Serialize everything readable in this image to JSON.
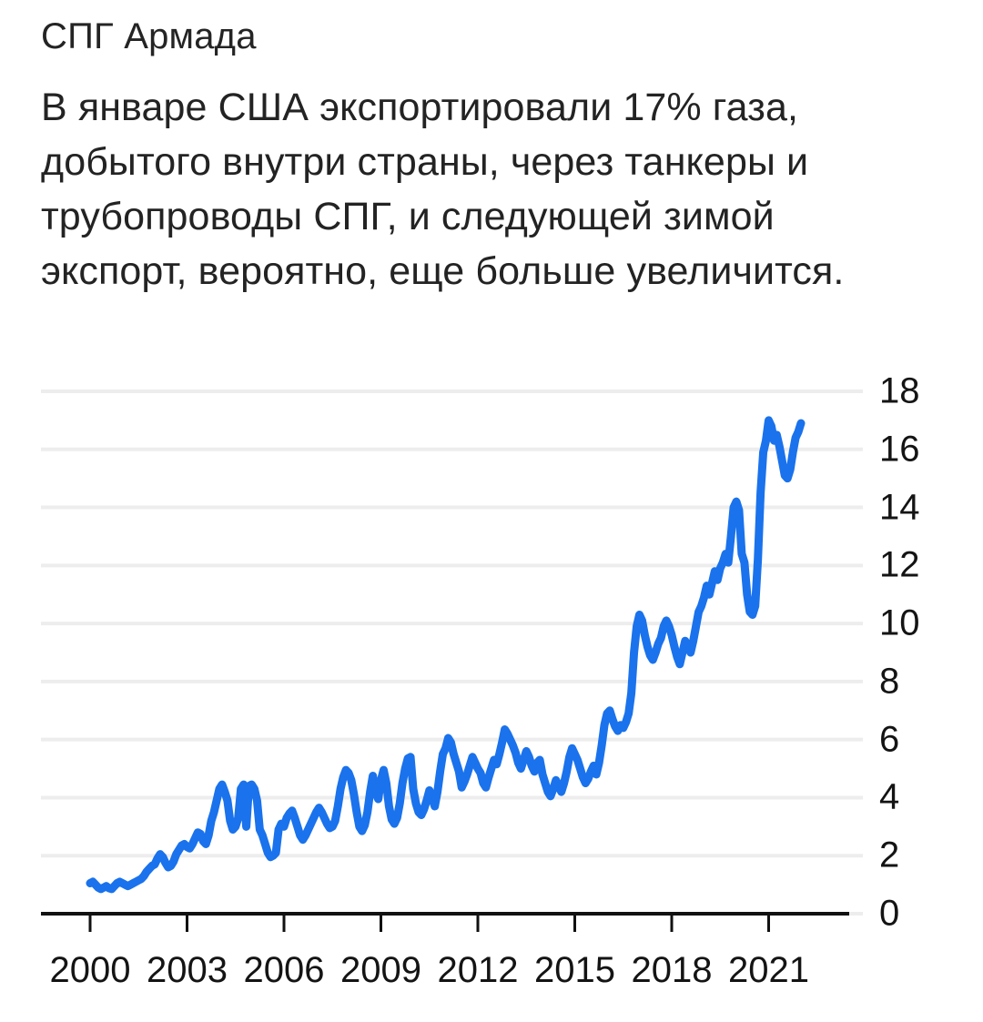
{
  "header": {
    "title": "СПГ Армада",
    "subtitle_lines": [
      "В январе США экспортировали 17% газа,",
      "добытого внутри страны, через танкеры и",
      "трубопроводы СПГ, и следующей зимой",
      "экспорт, вероятно, еще больше увеличится."
    ]
  },
  "chart_data": {
    "type": "line",
    "title": "СПГ Армада",
    "xlabel": "",
    "ylabel": "",
    "x_start_year": 2000,
    "points_per_year": 12,
    "x_end_label": "2022-01",
    "x_ticks": [
      2000,
      2003,
      2006,
      2009,
      2012,
      2015,
      2018,
      2021
    ],
    "y_ticks": [
      0,
      2,
      4,
      6,
      8,
      10,
      12,
      14,
      16,
      18
    ],
    "ylim": [
      0,
      18
    ],
    "grid": true,
    "legend": "none",
    "line_color": "#1a72ec",
    "grid_color": "#ededed",
    "axis_color": "#111111",
    "values": [
      1.05,
      1.1,
      1.0,
      0.9,
      0.85,
      0.9,
      0.95,
      0.88,
      0.85,
      0.95,
      1.05,
      1.1,
      1.05,
      1.0,
      0.95,
      1.0,
      1.05,
      1.1,
      1.15,
      1.2,
      1.3,
      1.45,
      1.55,
      1.65,
      1.7,
      1.9,
      2.05,
      1.95,
      1.75,
      1.6,
      1.65,
      1.8,
      2.05,
      2.2,
      2.35,
      2.4,
      2.3,
      2.25,
      2.4,
      2.6,
      2.8,
      2.75,
      2.5,
      2.4,
      2.7,
      3.2,
      3.5,
      3.9,
      4.3,
      4.45,
      4.2,
      3.9,
      3.2,
      2.9,
      3.0,
      3.3,
      4.3,
      4.45,
      3.0,
      4.4,
      4.45,
      4.3,
      3.9,
      2.9,
      2.7,
      2.4,
      2.1,
      1.95,
      2.0,
      2.1,
      2.9,
      3.1,
      3.0,
      3.3,
      3.45,
      3.55,
      3.3,
      3.0,
      2.7,
      2.55,
      2.7,
      2.9,
      3.1,
      3.3,
      3.5,
      3.65,
      3.5,
      3.3,
      3.1,
      2.95,
      3.0,
      3.2,
      3.7,
      4.3,
      4.7,
      4.95,
      4.85,
      4.6,
      4.1,
      3.5,
      3.0,
      2.85,
      3.05,
      3.5,
      4.2,
      4.75,
      4.2,
      3.95,
      4.6,
      4.95,
      4.5,
      3.7,
      3.25,
      3.1,
      3.3,
      3.8,
      4.5,
      5.0,
      5.35,
      5.4,
      4.3,
      3.8,
      3.5,
      3.4,
      3.6,
      3.9,
      4.25,
      4.0,
      3.7,
      4.2,
      4.9,
      5.5,
      5.7,
      6.05,
      5.9,
      5.5,
      5.2,
      4.9,
      4.35,
      4.55,
      4.8,
      5.1,
      5.4,
      5.2,
      5.0,
      4.85,
      4.5,
      4.35,
      4.7,
      5.0,
      5.3,
      5.15,
      5.5,
      5.9,
      6.35,
      6.2,
      6.0,
      5.8,
      5.55,
      5.2,
      5.0,
      5.3,
      5.6,
      5.4,
      5.1,
      4.9,
      5.2,
      5.3,
      4.8,
      4.5,
      4.2,
      4.05,
      4.3,
      4.6,
      4.4,
      4.2,
      4.5,
      4.9,
      5.4,
      5.7,
      5.5,
      5.3,
      5.0,
      4.7,
      4.5,
      4.65,
      4.9,
      5.1,
      4.8,
      5.2,
      5.8,
      6.5,
      6.9,
      7.0,
      6.7,
      6.45,
      6.3,
      6.5,
      6.4,
      6.6,
      6.9,
      7.6,
      9.0,
      9.9,
      10.3,
      10.1,
      9.6,
      9.2,
      8.9,
      8.75,
      9.0,
      9.3,
      9.5,
      9.9,
      10.1,
      9.9,
      9.6,
      9.2,
      8.85,
      8.6,
      9.0,
      9.4,
      9.2,
      9.0,
      9.4,
      9.9,
      10.4,
      10.6,
      10.9,
      11.3,
      11.0,
      11.4,
      11.8,
      11.5,
      11.9,
      12.1,
      12.4,
      12.1,
      13.0,
      14.0,
      14.2,
      13.9,
      12.4,
      12.1,
      11.0,
      10.4,
      10.3,
      10.6,
      12.2,
      14.5,
      15.9,
      16.3,
      17.0,
      16.8,
      16.3,
      16.5,
      16.1,
      15.6,
      15.1,
      15.0,
      15.3,
      15.9,
      16.4,
      16.6,
      16.9
    ]
  }
}
